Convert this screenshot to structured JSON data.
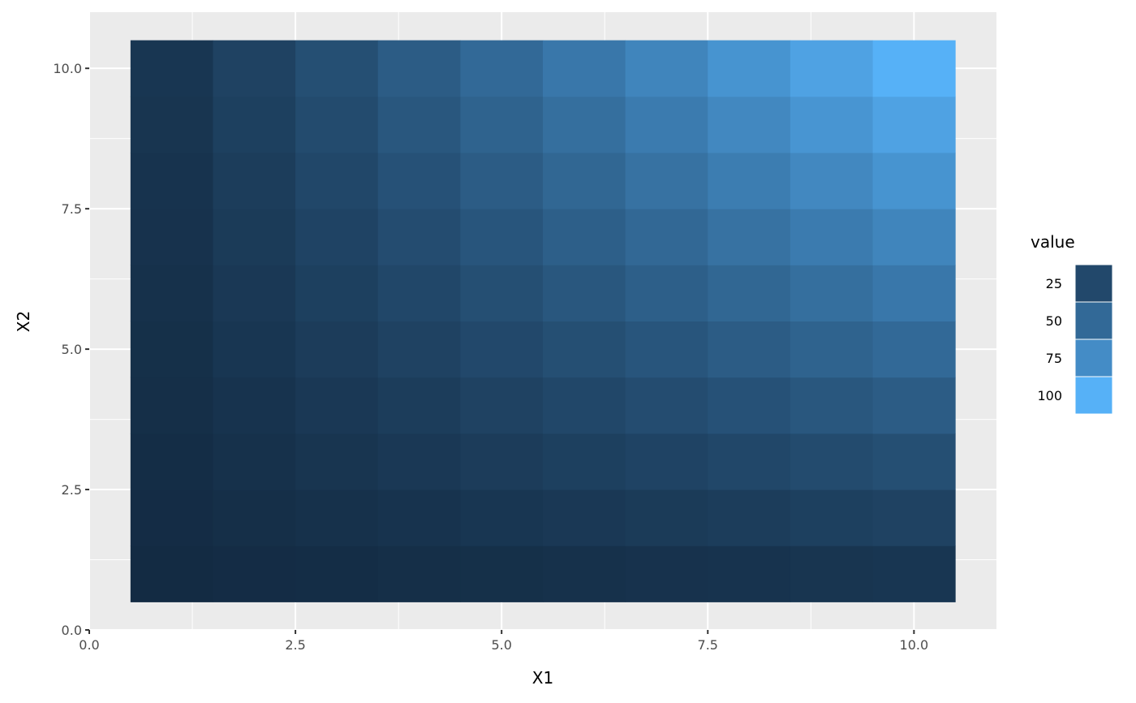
{
  "chart_data": {
    "type": "heatmap",
    "xlabel": "X1",
    "ylabel": "X2",
    "x": [
      1,
      2,
      3,
      4,
      5,
      6,
      7,
      8,
      9,
      10
    ],
    "y": [
      1,
      2,
      3,
      4,
      5,
      6,
      7,
      8,
      9,
      10
    ],
    "value_rule": "X1 * X2",
    "values": [
      [
        1,
        2,
        3,
        4,
        5,
        6,
        7,
        8,
        9,
        10
      ],
      [
        2,
        4,
        6,
        8,
        10,
        12,
        14,
        16,
        18,
        20
      ],
      [
        3,
        6,
        9,
        12,
        15,
        18,
        21,
        24,
        27,
        30
      ],
      [
        4,
        8,
        12,
        16,
        20,
        24,
        28,
        32,
        36,
        40
      ],
      [
        5,
        10,
        15,
        20,
        25,
        30,
        35,
        40,
        45,
        50
      ],
      [
        6,
        12,
        18,
        24,
        30,
        36,
        42,
        48,
        54,
        60
      ],
      [
        7,
        14,
        21,
        28,
        35,
        42,
        49,
        56,
        63,
        70
      ],
      [
        8,
        16,
        24,
        32,
        40,
        48,
        56,
        64,
        72,
        80
      ],
      [
        9,
        18,
        27,
        36,
        45,
        54,
        63,
        72,
        81,
        90
      ],
      [
        10,
        20,
        30,
        40,
        50,
        60,
        70,
        80,
        90,
        100
      ]
    ],
    "xlim": [
      0,
      11
    ],
    "ylim": [
      0,
      11
    ],
    "xticks": [
      "0.0",
      "2.5",
      "5.0",
      "7.5",
      "10.0"
    ],
    "yticks": [
      "0.0",
      "2.5",
      "5.0",
      "7.5",
      "10.0"
    ],
    "grid": true,
    "legend": {
      "title": "value",
      "placement": "right",
      "labels": [
        "25",
        "50",
        "75",
        "100"
      ],
      "values": [
        25,
        50,
        75,
        100
      ]
    },
    "colors": {
      "low": "#132B43",
      "high": "#56B1F7",
      "panel": "#EBEBEB",
      "grid": "#FFFFFF"
    }
  }
}
